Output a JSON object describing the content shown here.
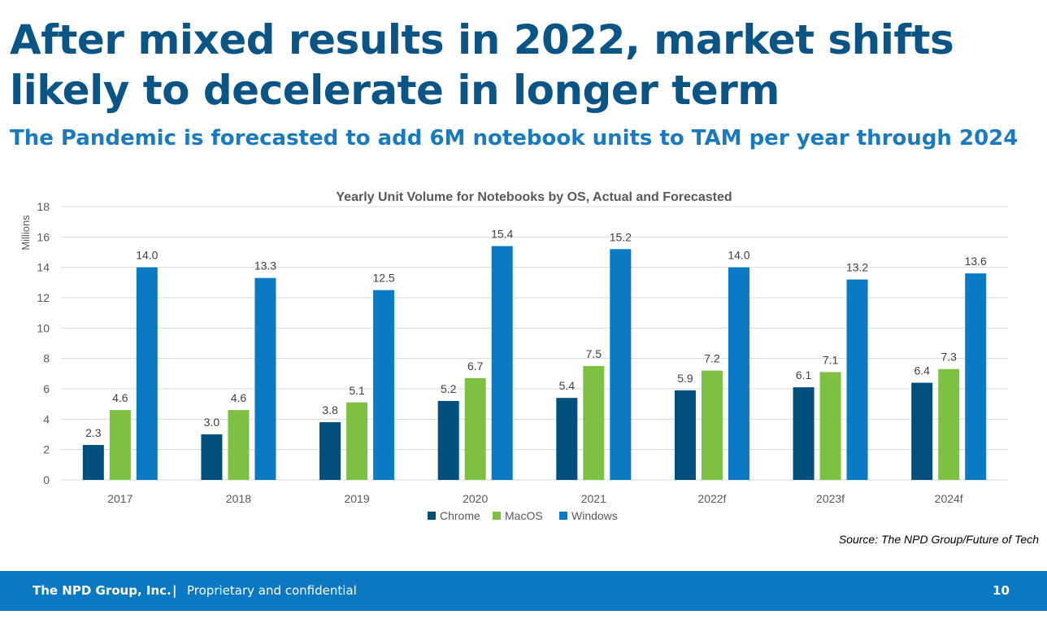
{
  "slide": {
    "title": "After mixed results in 2022, market shifts likely to decelerate in longer term",
    "subtitle": "The Pandemic is forecasted to add 6M notebook units to TAM per year through 2024",
    "source": "Source: The NPD Group/Future of Tech"
  },
  "footer": {
    "company": "The NPD Group, Inc.",
    "separator": "|",
    "confidential": "Proprietary and confidential",
    "page_number": "10"
  },
  "chart_data": {
    "type": "bar",
    "title": "Yearly Unit Volume for Notebooks by OS, Actual and Forecasted",
    "xlabel": "",
    "ylabel": "Millions",
    "ylim": [
      0,
      18
    ],
    "yticks": [
      0,
      2,
      4,
      6,
      8,
      10,
      12,
      14,
      16,
      18
    ],
    "grid": true,
    "legend_position": "bottom",
    "categories": [
      "2017",
      "2018",
      "2019",
      "2020",
      "2021",
      "2022f",
      "2023f",
      "2024f"
    ],
    "series": [
      {
        "name": "Chrome",
        "color": "#004f7c",
        "values": [
          2.3,
          3.0,
          3.8,
          5.2,
          5.4,
          5.9,
          6.1,
          6.4
        ]
      },
      {
        "name": "MacOS",
        "color": "#7dc142",
        "values": [
          4.6,
          4.6,
          5.1,
          6.7,
          7.5,
          7.2,
          7.1,
          7.3
        ]
      },
      {
        "name": "Windows",
        "color": "#0a7ac4",
        "values": [
          14.0,
          13.3,
          12.5,
          15.4,
          15.2,
          14.0,
          13.2,
          13.6
        ]
      }
    ]
  }
}
